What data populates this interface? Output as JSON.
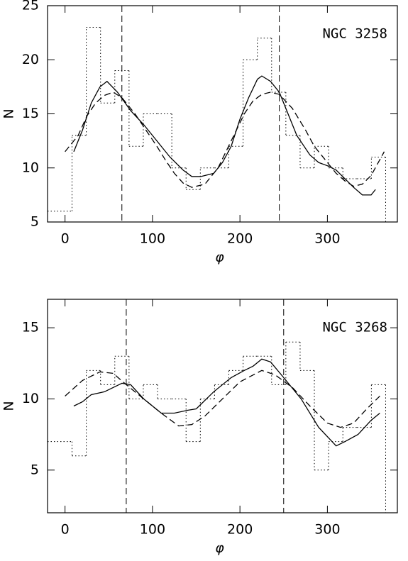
{
  "chart_data": [
    {
      "type": "histogram",
      "annotation": "NGC 3258",
      "xlabel": "φ",
      "ylabel": "N",
      "xlim": [
        -20,
        380
      ],
      "ylim": [
        5,
        25
      ],
      "xticks": [
        0,
        100,
        200,
        300
      ],
      "yticks": [
        5,
        10,
        15,
        20,
        25
      ],
      "color": "#000000",
      "bins": [
        -20,
        8,
        24.3,
        40.6,
        56.9,
        73.2,
        89.5,
        105.8,
        122.1,
        138.4,
        154.7,
        171,
        187.3,
        203.6,
        219.9,
        236.2,
        252.5,
        268.8,
        285.1,
        301.4,
        317.7,
        334,
        350.3,
        366.6
      ],
      "counts": [
        6,
        13,
        23,
        16,
        19,
        12,
        15,
        15,
        10,
        8,
        10,
        10,
        12,
        20,
        22,
        17,
        13,
        10,
        12,
        10,
        9,
        9,
        11
      ],
      "vlines": [
        65,
        245
      ],
      "series": [
        {
          "style": "solid",
          "x": [
            10,
            20,
            30,
            40,
            48,
            60,
            75,
            90,
            105,
            120,
            135,
            145,
            155,
            170,
            180,
            190,
            200,
            210,
            220,
            225,
            235,
            245,
            255,
            265,
            280,
            290,
            300,
            310,
            320,
            330,
            340,
            350,
            355
          ],
          "values": [
            11.5,
            13.5,
            16,
            17.5,
            18,
            17,
            15.3,
            14,
            12.5,
            11,
            9.8,
            9.2,
            9.2,
            9.5,
            10.5,
            12,
            14.5,
            16.5,
            18.2,
            18.5,
            18,
            17,
            15,
            13,
            11.2,
            10.5,
            10.2,
            9.8,
            9,
            8.2,
            7.5,
            7.5,
            8
          ]
        },
        {
          "style": "dashed",
          "x": [
            0,
            15,
            25,
            35,
            45,
            55,
            65,
            80,
            95,
            105,
            115,
            125,
            135,
            145,
            160,
            175,
            190,
            205,
            215,
            225,
            235,
            245,
            260,
            275,
            285,
            300,
            310,
            320,
            330,
            340,
            350,
            365
          ],
          "values": [
            11.5,
            13,
            14.8,
            16,
            16.7,
            17,
            16.5,
            15,
            13.2,
            12,
            10.7,
            9.5,
            8.6,
            8.2,
            8.5,
            10,
            12.5,
            15,
            16.2,
            16.8,
            17,
            16.8,
            15.5,
            13.5,
            12,
            10.5,
            9.5,
            8.8,
            8.3,
            8.5,
            9.3,
            11.5
          ]
        }
      ]
    },
    {
      "type": "histogram",
      "annotation": "NGC 3268",
      "xlabel": "φ",
      "ylabel": "N",
      "xlim": [
        -20,
        380
      ],
      "ylim": [
        2,
        17
      ],
      "xticks": [
        0,
        100,
        200,
        300
      ],
      "yticks": [
        5,
        10,
        15
      ],
      "color": "#000000",
      "bins": [
        -20,
        8,
        24.3,
        40.6,
        56.9,
        73.2,
        89.5,
        105.8,
        122.1,
        138.4,
        154.7,
        171,
        187.3,
        203.6,
        219.9,
        236.2,
        252.5,
        268.8,
        285.1,
        301.4,
        317.7,
        334,
        350.3,
        366.6
      ],
      "counts": [
        7,
        6,
        12,
        11,
        13,
        10,
        11,
        10,
        10,
        7,
        10,
        11,
        12,
        13,
        13,
        11,
        14,
        12,
        5,
        7,
        8,
        8,
        11
      ],
      "vlines": [
        70,
        250
      ],
      "series": [
        {
          "style": "solid",
          "x": [
            10,
            20,
            30,
            45,
            55,
            65,
            75,
            90,
            110,
            125,
            140,
            150,
            170,
            190,
            205,
            215,
            225,
            235,
            250,
            270,
            290,
            310,
            320,
            335,
            350,
            360
          ],
          "values": [
            9.5,
            9.8,
            10.3,
            10.5,
            10.8,
            11.1,
            11,
            10,
            9,
            9,
            9.2,
            9.3,
            10.5,
            11.5,
            12,
            12.3,
            12.8,
            12.6,
            11.5,
            10,
            8,
            6.7,
            7,
            7.5,
            8.5,
            9
          ]
        },
        {
          "style": "dashed",
          "x": [
            0,
            20,
            40,
            55,
            70,
            90,
            110,
            130,
            145,
            160,
            180,
            200,
            225,
            240,
            260,
            280,
            300,
            315,
            330,
            345,
            360
          ],
          "values": [
            10.2,
            11.3,
            11.9,
            11.8,
            11,
            10,
            9,
            8.1,
            8.2,
            8.8,
            10,
            11.2,
            12,
            11.7,
            10.8,
            9.5,
            8.3,
            8,
            8.3,
            9.3,
            10.2
          ]
        }
      ]
    }
  ]
}
